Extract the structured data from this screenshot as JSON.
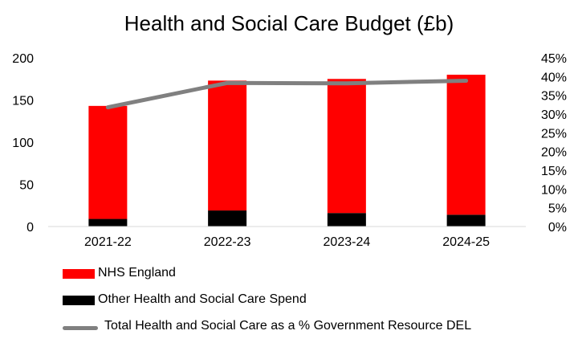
{
  "chart_data": {
    "type": "bar",
    "title": "Health and Social Care Budget (£b)",
    "categories": [
      "2021-22",
      "2022-23",
      "2023-24",
      "2024-25"
    ],
    "series": [
      {
        "name": "NHS England",
        "kind": "bar",
        "axis": "left",
        "values": [
          134,
          154,
          159,
          166
        ],
        "color": "#ff0000"
      },
      {
        "name": "Other Health and Social Care Spend",
        "kind": "bar",
        "axis": "left",
        "values": [
          9,
          19,
          16,
          14
        ],
        "color": "#000000"
      },
      {
        "name": "Total Health and Social Care as a % Government Resource DEL",
        "kind": "line",
        "axis": "right",
        "values": [
          31.8,
          38.3,
          38.2,
          38.9
        ],
        "color": "#808080"
      }
    ],
    "stacked": true,
    "ylim": [
      0,
      200
    ],
    "yticks": [
      "0",
      "50",
      "100",
      "150",
      "200"
    ],
    "y2lim": [
      0,
      45
    ],
    "y2ticks": [
      "0%",
      "5%",
      "10%",
      "15%",
      "20%",
      "25%",
      "30%",
      "35%",
      "40%",
      "45%"
    ],
    "grid": false,
    "legend_position": "bottom-left"
  }
}
